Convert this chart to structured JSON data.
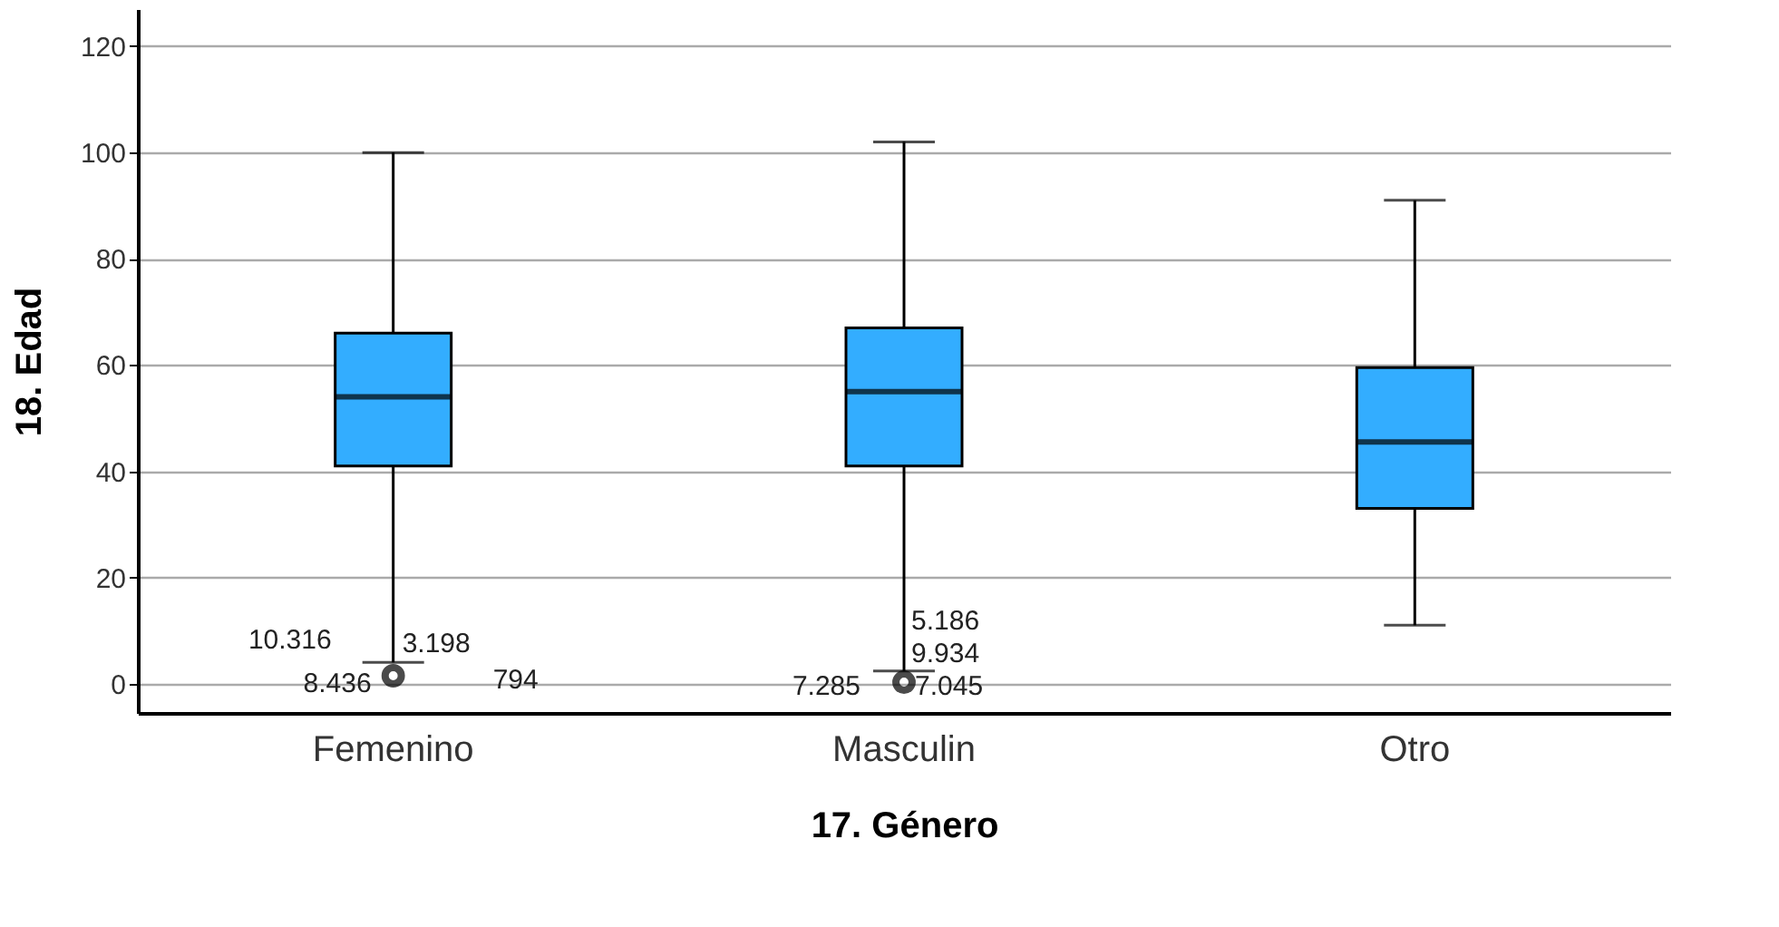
{
  "chart_data": {
    "type": "box",
    "xlabel": "17. Género",
    "ylabel": "18. Edad",
    "categories": [
      "Femenino",
      "Masculin",
      "Otro"
    ],
    "boxes": [
      {
        "low": 4,
        "q1": 41,
        "median": 54,
        "q3": 66,
        "high": 100,
        "outliers": [
          1.5
        ]
      },
      {
        "low": 2.4,
        "q1": 41,
        "median": 55,
        "q3": 67,
        "high": 102,
        "outliers": [
          0.3
        ]
      },
      {
        "low": 11,
        "q1": 33,
        "median": 45.5,
        "q3": 59.5,
        "high": 91
      }
    ],
    "color": "#33adff",
    "ylim": [
      -5.5,
      127
    ],
    "yticks": [
      0,
      20,
      40,
      60,
      80,
      100,
      120
    ],
    "grid": "y",
    "annotations": [
      "10.316",
      "3.198",
      "8.436",
      "794",
      "5.186",
      "9.934",
      "7.285",
      "7.045"
    ]
  }
}
